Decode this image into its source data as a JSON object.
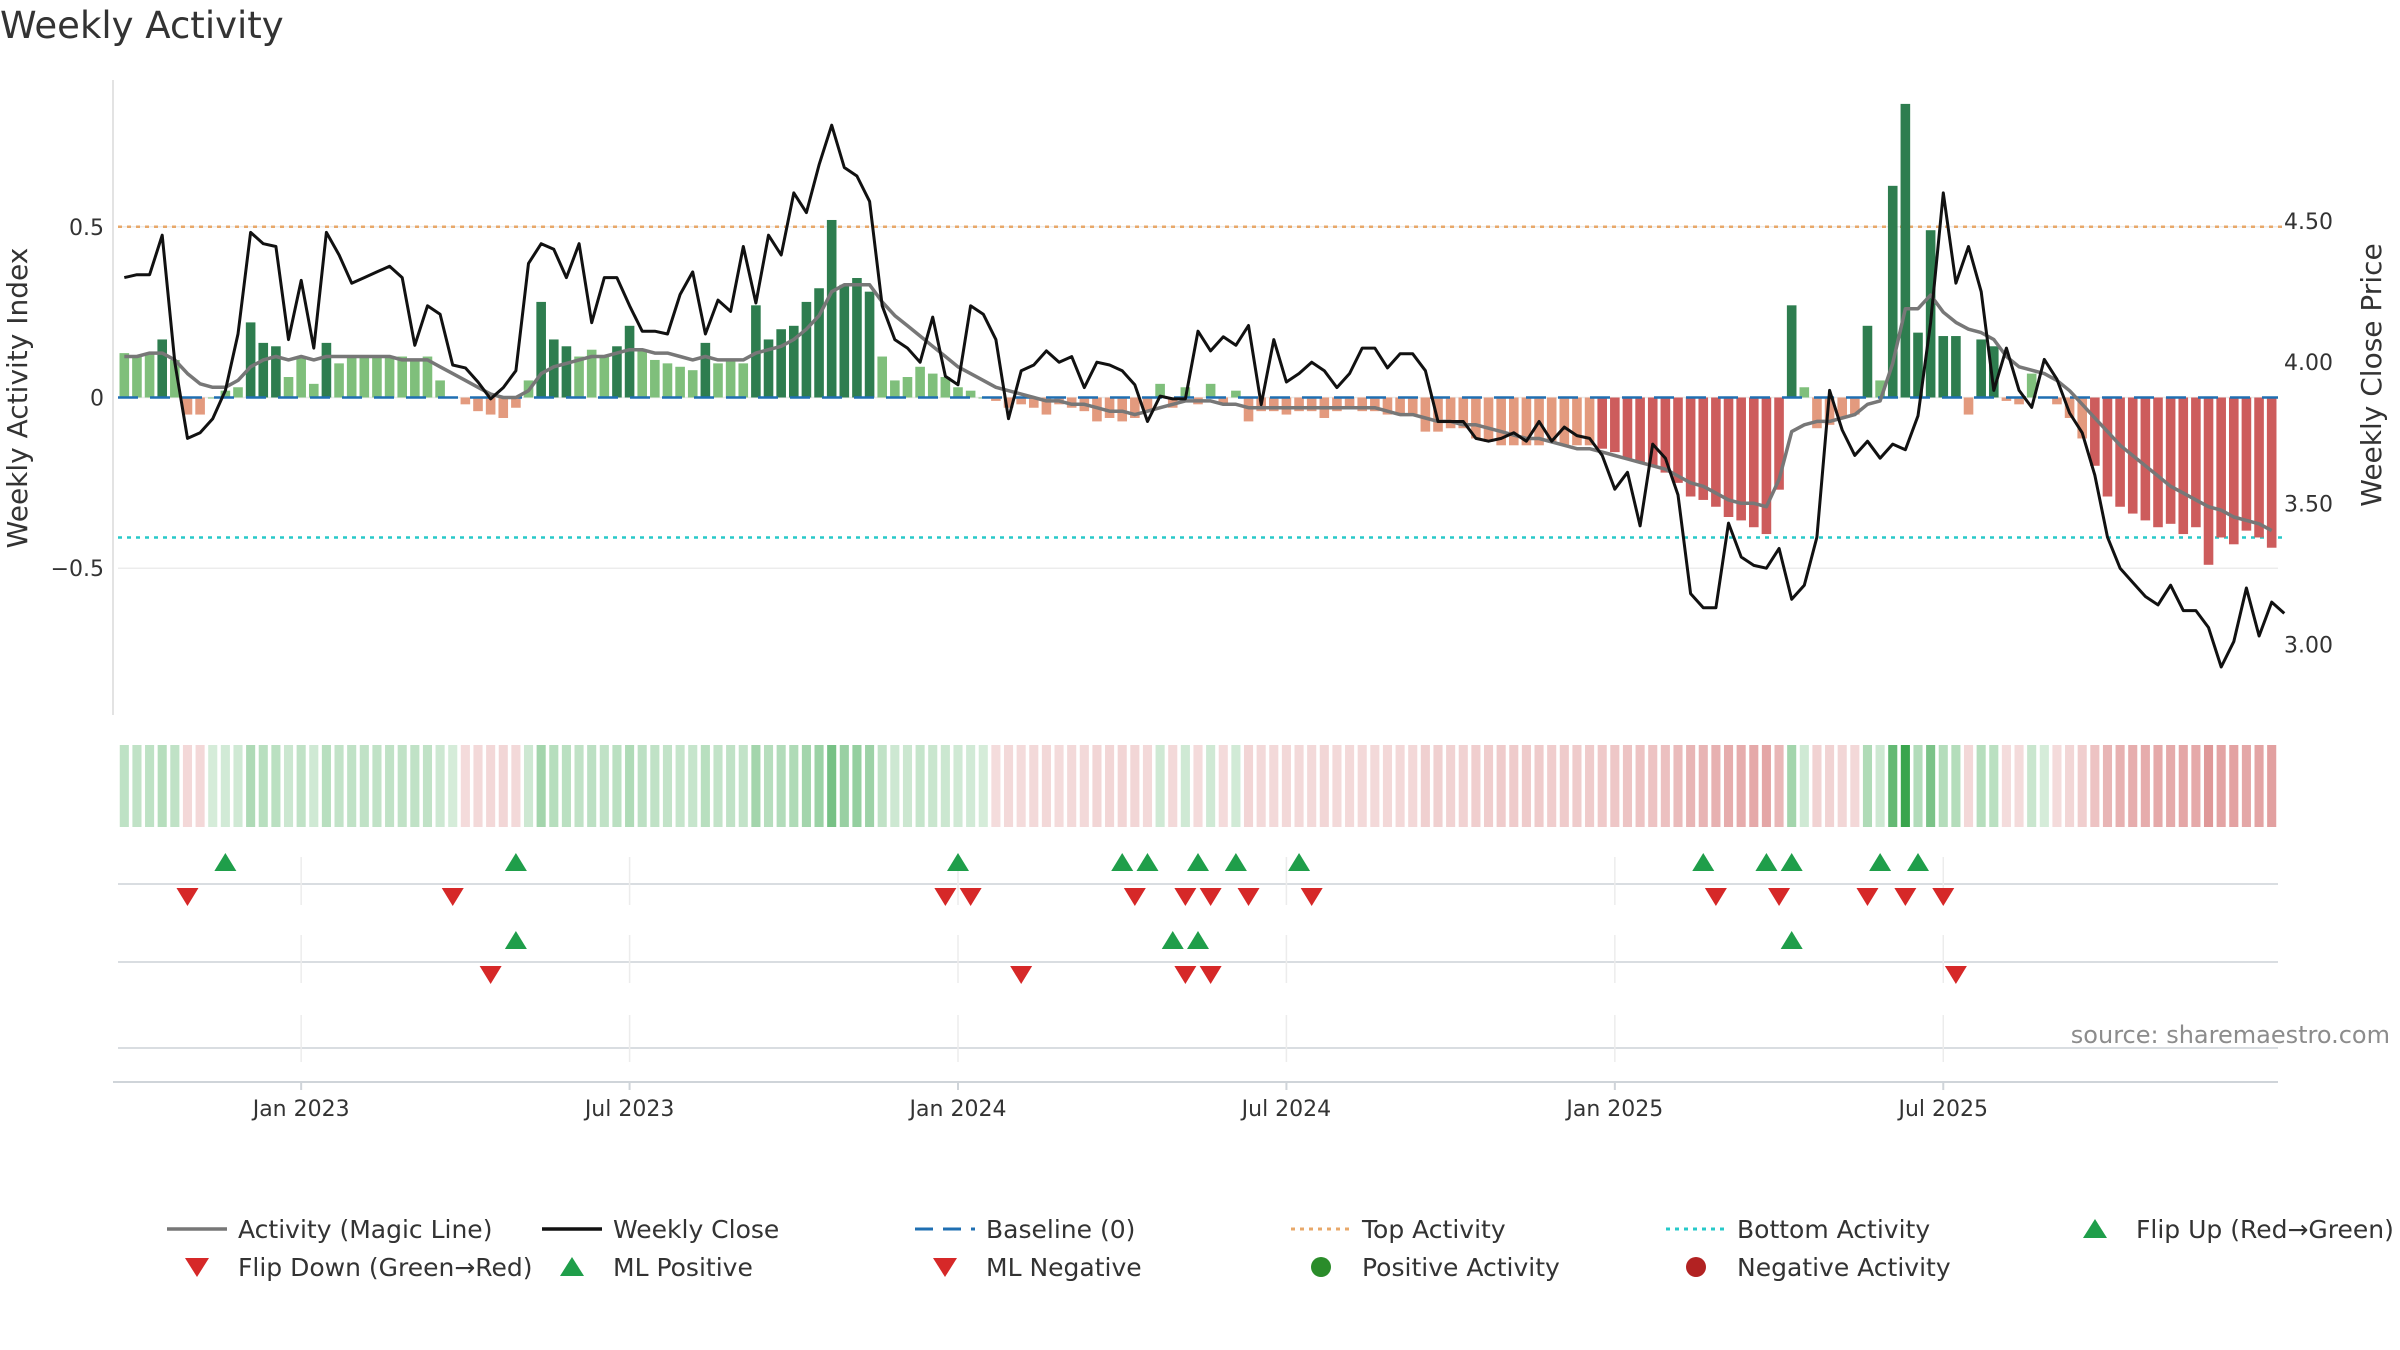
{
  "chart_data": {
    "type": "bar",
    "title": "Weekly Activity",
    "ylabel_left": "Weekly Activity Index",
    "ylabel_right": "Weekly Close Price",
    "source": "source: sharemaestro.com",
    "x_tick_labels": [
      "Jan 2023",
      "Jul 2023",
      "Jan 2024",
      "Jul 2024",
      "Jan 2025",
      "Jul 2025"
    ],
    "x_tick_weeks": [
      14,
      40,
      66,
      92,
      118,
      144
    ],
    "left_ticks": [
      {
        "label": "0.5",
        "value": 0.5
      },
      {
        "label": "0",
        "value": 0
      },
      {
        "label": "−0.5",
        "value": -0.5
      }
    ],
    "right_ticks": [
      {
        "label": "4.50",
        "value": 4.5
      },
      {
        "label": "4.00",
        "value": 4.0
      },
      {
        "label": "3.50",
        "value": 3.5
      },
      {
        "label": "3.00",
        "value": 3.0
      }
    ],
    "left_ylim": [
      -0.93,
      0.93
    ],
    "right_ylim": [
      2.75,
      5.0
    ],
    "top_activity": 0.5,
    "bottom_activity": -0.41,
    "baseline": 0,
    "activity": [
      0.13,
      0.12,
      0.13,
      0.17,
      0.11,
      -0.05,
      -0.05,
      0.0,
      0.02,
      0.03,
      0.22,
      0.16,
      0.15,
      0.06,
      0.12,
      0.04,
      0.16,
      0.1,
      0.12,
      0.12,
      0.12,
      0.12,
      0.12,
      0.11,
      0.12,
      0.05,
      0.0,
      -0.02,
      -0.04,
      -0.05,
      -0.06,
      -0.03,
      0.05,
      0.28,
      0.17,
      0.15,
      0.12,
      0.14,
      0.12,
      0.15,
      0.21,
      0.14,
      0.11,
      0.1,
      0.09,
      0.08,
      0.16,
      0.1,
      0.11,
      0.1,
      0.27,
      0.17,
      0.2,
      0.21,
      0.28,
      0.32,
      0.52,
      0.33,
      0.35,
      0.31,
      0.12,
      0.05,
      0.06,
      0.09,
      0.07,
      0.06,
      0.03,
      0.02,
      0.0,
      -0.01,
      -0.03,
      -0.02,
      -0.03,
      -0.05,
      -0.02,
      -0.03,
      -0.04,
      -0.07,
      -0.06,
      -0.07,
      -0.06,
      -0.04,
      0.04,
      -0.03,
      0.03,
      -0.02,
      0.04,
      -0.02,
      0.02,
      -0.07,
      -0.04,
      -0.04,
      -0.05,
      -0.04,
      -0.04,
      -0.06,
      -0.04,
      -0.03,
      -0.04,
      -0.04,
      -0.05,
      -0.05,
      -0.05,
      -0.1,
      -0.1,
      -0.09,
      -0.09,
      -0.12,
      -0.13,
      -0.14,
      -0.14,
      -0.14,
      -0.14,
      -0.13,
      -0.14,
      -0.14,
      -0.14,
      -0.15,
      -0.16,
      -0.18,
      -0.19,
      -0.2,
      -0.22,
      -0.25,
      -0.29,
      -0.3,
      -0.32,
      -0.35,
      -0.36,
      -0.38,
      -0.4,
      -0.27,
      0.27,
      0.03,
      -0.09,
      -0.08,
      -0.06,
      -0.05,
      0.21,
      0.05,
      0.62,
      0.86,
      0.19,
      0.49,
      0.18,
      0.18,
      -0.05,
      0.17,
      0.15,
      -0.01,
      -0.02,
      0.07,
      0.0,
      -0.02,
      -0.06,
      -0.12,
      -0.2,
      -0.29,
      -0.32,
      -0.34,
      -0.36,
      -0.38,
      -0.37,
      -0.4,
      -0.38,
      -0.49,
      -0.41,
      -0.43,
      -0.39,
      -0.41,
      -0.44
    ],
    "magic_line": [
      0.12,
      0.12,
      0.13,
      0.13,
      0.11,
      0.07,
      0.04,
      0.03,
      0.03,
      0.05,
      0.09,
      0.11,
      0.12,
      0.11,
      0.12,
      0.11,
      0.12,
      0.12,
      0.12,
      0.12,
      0.12,
      0.12,
      0.11,
      0.11,
      0.11,
      0.09,
      0.07,
      0.05,
      0.03,
      0.01,
      0.0,
      0.0,
      0.02,
      0.07,
      0.09,
      0.1,
      0.11,
      0.12,
      0.12,
      0.13,
      0.14,
      0.14,
      0.13,
      0.13,
      0.12,
      0.11,
      0.12,
      0.11,
      0.11,
      0.11,
      0.13,
      0.14,
      0.15,
      0.17,
      0.2,
      0.24,
      0.31,
      0.33,
      0.33,
      0.33,
      0.28,
      0.24,
      0.21,
      0.18,
      0.15,
      0.12,
      0.09,
      0.07,
      0.05,
      0.03,
      0.02,
      0.01,
      0.0,
      -0.01,
      -0.01,
      -0.02,
      -0.02,
      -0.03,
      -0.04,
      -0.04,
      -0.05,
      -0.04,
      -0.03,
      -0.02,
      -0.01,
      -0.01,
      -0.01,
      -0.02,
      -0.02,
      -0.03,
      -0.03,
      -0.03,
      -0.03,
      -0.03,
      -0.03,
      -0.03,
      -0.03,
      -0.03,
      -0.03,
      -0.03,
      -0.04,
      -0.05,
      -0.05,
      -0.06,
      -0.07,
      -0.07,
      -0.08,
      -0.08,
      -0.09,
      -0.1,
      -0.11,
      -0.12,
      -0.12,
      -0.13,
      -0.14,
      -0.15,
      -0.15,
      -0.16,
      -0.17,
      -0.18,
      -0.19,
      -0.2,
      -0.21,
      -0.23,
      -0.25,
      -0.26,
      -0.28,
      -0.3,
      -0.31,
      -0.31,
      -0.32,
      -0.24,
      -0.1,
      -0.08,
      -0.07,
      -0.07,
      -0.06,
      -0.05,
      -0.02,
      -0.01,
      0.1,
      0.26,
      0.26,
      0.3,
      0.25,
      0.22,
      0.2,
      0.19,
      0.17,
      0.12,
      0.09,
      0.08,
      0.07,
      0.05,
      0.02,
      -0.02,
      -0.06,
      -0.1,
      -0.14,
      -0.17,
      -0.2,
      -0.23,
      -0.26,
      -0.28,
      -0.3,
      -0.32,
      -0.33,
      -0.35,
      -0.36,
      -0.37,
      -0.39
    ],
    "close": [
      4.3,
      4.31,
      4.31,
      4.45,
      4.0,
      3.73,
      3.75,
      3.8,
      3.9,
      4.1,
      4.46,
      4.42,
      4.41,
      4.08,
      4.29,
      4.05,
      4.46,
      4.38,
      4.28,
      4.3,
      4.32,
      4.34,
      4.3,
      4.06,
      4.2,
      4.17,
      3.99,
      3.98,
      3.93,
      3.87,
      3.91,
      3.97,
      4.35,
      4.42,
      4.4,
      4.3,
      4.42,
      4.14,
      4.3,
      4.3,
      4.2,
      4.11,
      4.11,
      4.1,
      4.24,
      4.32,
      4.1,
      4.22,
      4.18,
      4.41,
      4.21,
      4.45,
      4.38,
      4.6,
      4.53,
      4.7,
      4.84,
      4.69,
      4.66,
      4.57,
      4.2,
      4.08,
      4.05,
      4.0,
      4.16,
      3.95,
      3.92,
      4.2,
      4.17,
      4.08,
      3.8,
      3.97,
      3.99,
      4.04,
      4.0,
      4.02,
      3.91,
      4.0,
      3.99,
      3.97,
      3.92,
      3.79,
      3.88,
      3.87,
      3.87,
      4.11,
      4.04,
      4.09,
      4.06,
      4.13,
      3.85,
      4.08,
      3.93,
      3.96,
      4.0,
      3.97,
      3.91,
      3.96,
      4.05,
      4.05,
      3.98,
      4.03,
      4.03,
      3.97,
      3.79,
      3.79,
      3.79,
      3.73,
      3.72,
      3.73,
      3.75,
      3.72,
      3.79,
      3.72,
      3.77,
      3.74,
      3.73,
      3.67,
      3.55,
      3.61,
      3.42,
      3.71,
      3.66,
      3.53,
      3.18,
      3.13,
      3.13,
      3.43,
      3.31,
      3.28,
      3.27,
      3.34,
      3.16,
      3.21,
      3.38,
      3.9,
      3.76,
      3.67,
      3.72,
      3.66,
      3.71,
      3.69,
      3.81,
      4.14,
      4.6,
      4.28,
      4.41,
      4.25,
      3.9,
      4.05,
      3.9,
      3.84,
      4.01,
      3.94,
      3.82,
      3.75,
      3.6,
      3.38,
      3.27,
      3.22,
      3.17,
      3.14,
      3.21,
      3.12,
      3.12,
      3.06,
      2.92,
      3.01,
      3.2,
      3.03,
      3.15,
      3.11
    ],
    "flip_up_weeks": [
      8,
      31,
      66,
      79,
      81,
      85,
      88,
      93,
      125,
      130,
      132,
      139,
      142
    ],
    "flip_down_weeks": [
      5,
      26,
      65,
      67,
      80,
      84,
      86,
      89,
      94,
      126,
      131,
      138,
      141,
      144
    ],
    "ml_positive_weeks": [
      31,
      83,
      85,
      132
    ],
    "ml_negative_weeks": [
      29,
      71,
      84,
      86,
      145
    ]
  },
  "legend": [
    {
      "label": "Activity (Magic Line)",
      "symbol": "line",
      "color": "#777777"
    },
    {
      "label": "Weekly Close",
      "symbol": "line",
      "color": "#111111"
    },
    {
      "label": "Baseline (0)",
      "symbol": "dash",
      "color": "#1f6fb2"
    },
    {
      "label": "Top Activity",
      "symbol": "dot-line",
      "color": "#e8a86a"
    },
    {
      "label": "Bottom Activity",
      "symbol": "dot-line",
      "color": "#27c9c9"
    },
    {
      "label": "Flip Up (Red→Green)",
      "symbol": "triangle-up",
      "color": "#1f9e4a"
    },
    {
      "label": "Flip Down (Green→Red)",
      "symbol": "triangle-down",
      "color": "#d62828"
    },
    {
      "label": "ML Positive",
      "symbol": "triangle-up",
      "color": "#1f9e4a"
    },
    {
      "label": "ML Negative",
      "symbol": "triangle-down",
      "color": "#d62828"
    },
    {
      "label": "Positive Activity",
      "symbol": "circle",
      "color": "#2a8c2a"
    },
    {
      "label": "Negative Activity",
      "symbol": "circle",
      "color": "#b22222"
    }
  ],
  "colors": {
    "pos_dark": "#2e7d4f",
    "pos_light": "#7fbf7b",
    "neg_dark": "#cd5c5c",
    "neg_light": "#e39a7e",
    "magic_line": "#777777",
    "close_line": "#111111",
    "baseline": "#1f6fb2",
    "top": "#e8a86a",
    "bottom": "#27c9c9",
    "up": "#1f9e4a",
    "down": "#d62828"
  }
}
